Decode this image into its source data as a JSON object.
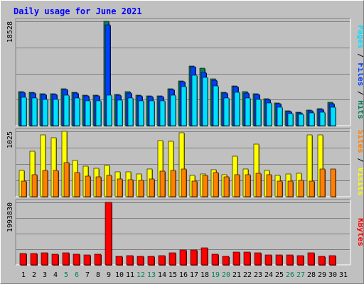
{
  "chart_data": [
    {
      "type": "bar",
      "title": "Daily usage for June 2021",
      "categories": [
        "1",
        "2",
        "3",
        "4",
        "5",
        "6",
        "7",
        "8",
        "9",
        "10",
        "11",
        "12",
        "13",
        "14",
        "15",
        "16",
        "17",
        "18",
        "19",
        "20",
        "21",
        "22",
        "23",
        "24",
        "25",
        "26",
        "27",
        "28",
        "29",
        "30",
        "31"
      ],
      "y_tick_label": "18528",
      "ylim": [
        0,
        18528
      ],
      "right_label": {
        "pages": "Pages",
        "files": "Files",
        "hits": "Hits",
        "sep": "/"
      },
      "series": [
        {
          "name": "Hits",
          "color": "#00805c",
          "values": [
            6050,
            5950,
            5700,
            5650,
            6550,
            5950,
            5450,
            5400,
            18528,
            5600,
            6000,
            5450,
            5300,
            5300,
            6550,
            8000,
            10650,
            10150,
            8350,
            5950,
            7050,
            6000,
            5650,
            4850,
            4000,
            2650,
            2450,
            2800,
            3000,
            4100,
            0
          ]
        },
        {
          "name": "Files",
          "color": "#0040ff",
          "values": [
            5900,
            5800,
            5550,
            5500,
            6400,
            5800,
            5300,
            5250,
            17900,
            5450,
            5850,
            5300,
            5150,
            5150,
            6400,
            7850,
            10500,
            9400,
            8100,
            5800,
            6900,
            5850,
            5500,
            4700,
            3850,
            2500,
            2300,
            2650,
            2850,
            3950,
            0
          ]
        },
        {
          "name": "Pages",
          "color": "#00e0ff",
          "values": [
            5000,
            4900,
            4700,
            4700,
            5400,
            4900,
            4450,
            4450,
            5450,
            4600,
            4950,
            4450,
            4350,
            4350,
            5400,
            6950,
            8950,
            8550,
            7000,
            4900,
            5900,
            4950,
            4700,
            4000,
            3300,
            2150,
            2000,
            2250,
            2450,
            3300,
            0
          ]
        }
      ]
    },
    {
      "type": "bar",
      "categories": [
        "1",
        "2",
        "3",
        "4",
        "5",
        "6",
        "7",
        "8",
        "9",
        "10",
        "11",
        "12",
        "13",
        "14",
        "15",
        "16",
        "17",
        "18",
        "19",
        "20",
        "21",
        "22",
        "23",
        "24",
        "25",
        "26",
        "27",
        "28",
        "29",
        "30",
        "31"
      ],
      "y_tick_label": "1025",
      "ylim": [
        0,
        1025
      ],
      "right_label": {
        "sites": "Sites",
        "visits": "Visits",
        "sep": "/"
      },
      "series": [
        {
          "name": "Visits",
          "color": "#ffff00",
          "values": [
            410,
            710,
            970,
            920,
            1025,
            570,
            480,
            450,
            490,
            395,
            390,
            360,
            430,
            875,
            870,
            1000,
            330,
            360,
            420,
            340,
            640,
            440,
            820,
            410,
            330,
            360,
            370,
            970,
            970,
            0,
            0
          ]
        },
        {
          "name": "Sites",
          "color": "#ff8000",
          "values": [
            240,
            350,
            410,
            410,
            530,
            380,
            320,
            310,
            330,
            280,
            270,
            260,
            280,
            400,
            410,
            440,
            240,
            330,
            380,
            310,
            340,
            340,
            370,
            340,
            250,
            240,
            260,
            240,
            440,
            430,
            0
          ]
        }
      ]
    },
    {
      "type": "bar",
      "categories": [
        "1",
        "2",
        "3",
        "4",
        "5",
        "6",
        "7",
        "8",
        "9",
        "10",
        "11",
        "12",
        "13",
        "14",
        "15",
        "16",
        "17",
        "18",
        "19",
        "20",
        "21",
        "22",
        "23",
        "24",
        "25",
        "26",
        "27",
        "28",
        "29",
        "30",
        "31"
      ],
      "y_tick_label": "1993830",
      "ylim": [
        0,
        1993830
      ],
      "right_label": {
        "kbytes": "KBytes"
      },
      "series": [
        {
          "name": "KBytes",
          "color": "#ff0000",
          "values": [
            370000,
            360000,
            380000,
            330000,
            380000,
            340000,
            320000,
            330000,
            1993830,
            280000,
            290000,
            280000,
            270000,
            300000,
            380000,
            480000,
            480000,
            550000,
            340000,
            280000,
            400000,
            400000,
            380000,
            310000,
            320000,
            320000,
            290000,
            380000,
            270000,
            300000,
            0
          ]
        }
      ]
    }
  ],
  "weekend_days": [
    5,
    6,
    12,
    13,
    19,
    20,
    26,
    27
  ],
  "colors": {
    "background": "#c0c0c0",
    "grid": "#808080",
    "title": "#0000ff",
    "weekday_label": "#000000",
    "weekend_label": "#00805c"
  }
}
